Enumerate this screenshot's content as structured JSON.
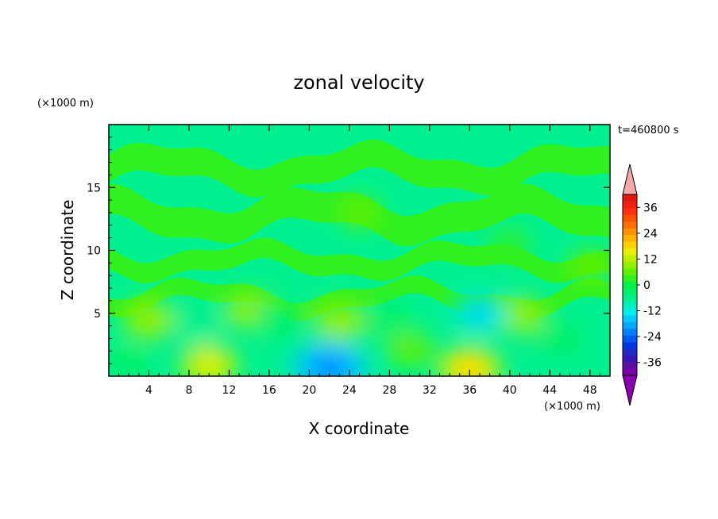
{
  "chart_data": {
    "type": "heatmap",
    "title": "zonal velocity",
    "xlabel": "X coordinate",
    "ylabel": "Z coordinate",
    "x_unit": "(×1000 m)",
    "y_unit": "(×1000 m)",
    "time_label": "t=460800 s",
    "xlim": [
      0,
      50
    ],
    "ylim": [
      0,
      20
    ],
    "x_ticks": [
      4,
      8,
      12,
      16,
      20,
      24,
      28,
      32,
      36,
      40,
      44,
      48
    ],
    "y_ticks": [
      5,
      10,
      15
    ],
    "colorbar": {
      "levels": [
        -42,
        -39,
        -36,
        -33,
        -30,
        -27,
        -24,
        -21,
        -18,
        -15,
        -12,
        -9,
        -6,
        -3,
        0,
        3,
        6,
        9,
        12,
        15,
        18,
        21,
        24,
        27,
        30,
        33,
        36,
        39,
        42
      ],
      "tick_labels": [
        "36",
        "24",
        "12",
        "0",
        "-12",
        "-24",
        "-36"
      ],
      "tick_values": [
        36,
        24,
        12,
        0,
        -12,
        -24,
        -36
      ],
      "colors": [
        "#7a00a8",
        "#5a10a0",
        "#3a14b4",
        "#2028c8",
        "#0038e0",
        "#0058f0",
        "#0080ff",
        "#00aaff",
        "#00ccff",
        "#00eeee",
        "#00f0c0",
        "#00f090",
        "#00f068",
        "#00f048",
        "#30f020",
        "#60f000",
        "#90f000",
        "#c0f000",
        "#e8f000",
        "#ffd000",
        "#ffb000",
        "#ff9000",
        "#ff7000",
        "#ff5000",
        "#ff3010",
        "#f02010",
        "#e01810",
        "#f5a8a8"
      ],
      "extend": "both"
    },
    "fields": [
      {
        "x": 4,
        "z": 4.5,
        "u": 8
      },
      {
        "x": 10,
        "z": 0.8,
        "u": 10
      },
      {
        "x": 14,
        "z": 5.2,
        "u": 6
      },
      {
        "x": 23,
        "z": 4.3,
        "u": 8
      },
      {
        "x": 30,
        "z": 2.2,
        "u": 5
      },
      {
        "x": 36,
        "z": 0.5,
        "u": 12
      },
      {
        "x": 41,
        "z": 4.8,
        "u": 7
      },
      {
        "x": 48,
        "z": 8.7,
        "u": 4
      },
      {
        "x": 9,
        "z": 4.0,
        "u": -8
      },
      {
        "x": 17,
        "z": 4.5,
        "u": -6
      },
      {
        "x": 22,
        "z": 0.6,
        "u": -18
      },
      {
        "x": 28,
        "z": 4.4,
        "u": -5
      },
      {
        "x": 37,
        "z": 5.0,
        "u": -11
      },
      {
        "x": 45,
        "z": 3.0,
        "u": -5
      },
      {
        "x": 2,
        "z": 1.2,
        "u": -4
      },
      {
        "x": 25,
        "z": 13.0,
        "u": 3
      },
      {
        "x": 40,
        "z": 10.5,
        "u": 2
      }
    ]
  }
}
